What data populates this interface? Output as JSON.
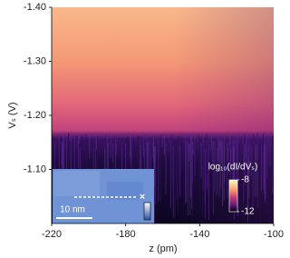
{
  "chart_data": {
    "type": "heatmap",
    "x_label": "z (pm)",
    "y_label": "Vₛ (V)",
    "xlim": [
      -220,
      -100
    ],
    "xticks": [
      -220,
      -180,
      -140,
      -100
    ],
    "ylim": [
      -1.0,
      -1.4
    ],
    "yticks": [
      {
        "value": -1.4,
        "label": "-1.40"
      },
      {
        "value": -1.3,
        "label": "-1.30"
      },
      {
        "value": -1.2,
        "label": "-1.20"
      },
      {
        "value": -1.1,
        "label": "-1.10"
      }
    ],
    "colorbar": {
      "label": "log₁₀(dI/dVₛ)",
      "clim": [
        -12,
        -8
      ],
      "ticks": [
        -8,
        -12
      ]
    },
    "inset": {
      "scale_label": "10 nm"
    }
  }
}
